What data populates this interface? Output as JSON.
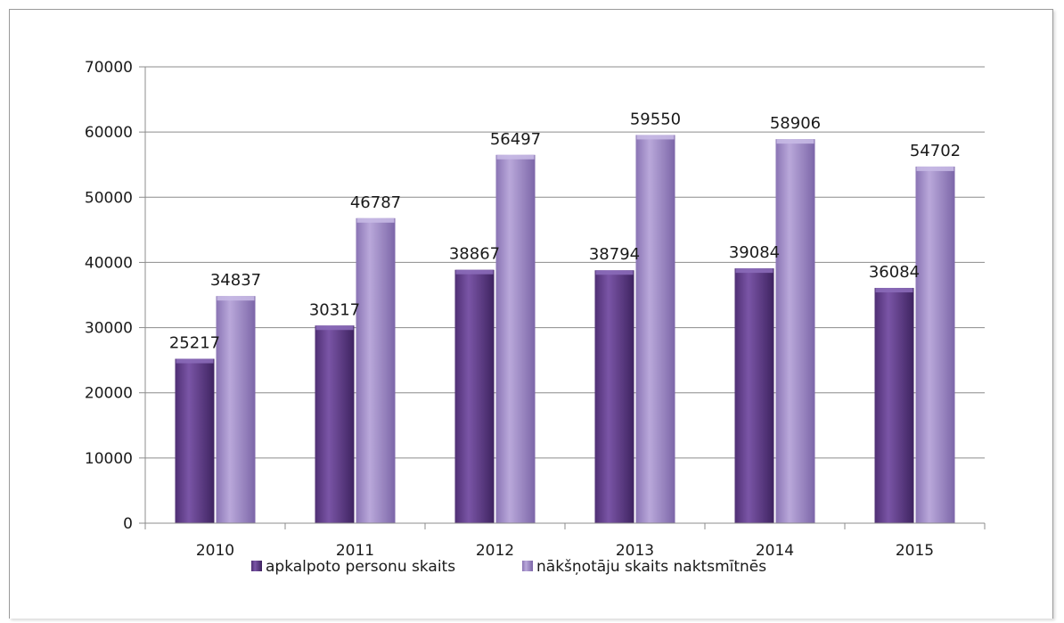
{
  "chart_data": {
    "type": "bar",
    "title": "",
    "xlabel": "",
    "ylabel": "",
    "categories": [
      "2010",
      "2011",
      "2012",
      "2013",
      "2014",
      "2015"
    ],
    "series": [
      {
        "name": "apkalpoto personu skaits",
        "values": [
          25217,
          30317,
          38867,
          38794,
          39084,
          36084
        ],
        "color": "#6b4693"
      },
      {
        "name": "nākšņotāju skaits naktsmītnēs",
        "values": [
          34837,
          46787,
          56497,
          59550,
          58906,
          54702
        ],
        "color": "#a08cc4"
      }
    ],
    "ylim": [
      0,
      70000
    ],
    "yticks": [
      "0",
      "10000",
      "20000",
      "30000",
      "40000",
      "50000",
      "60000",
      "70000"
    ],
    "grid": true,
    "legend_position": "bottom",
    "data_labels": true
  }
}
